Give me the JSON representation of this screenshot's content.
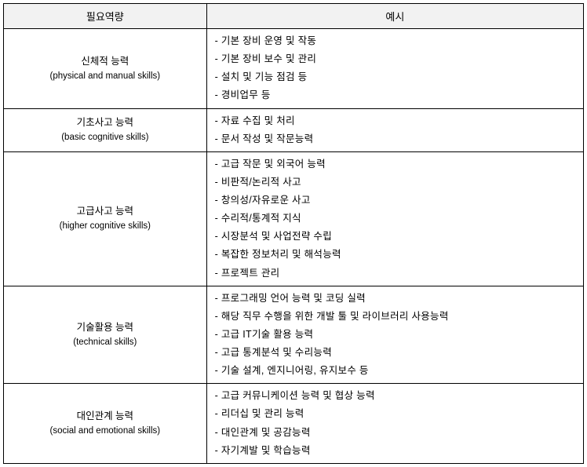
{
  "headers": {
    "category": "필요역량",
    "examples": "예시"
  },
  "rows": [
    {
      "kr": "신체적 능력",
      "en": "(physical and manual skills)",
      "items": [
        "- 기본 장비 운영 및 작동",
        "- 기본 장비 보수 및 관리",
        "- 설치 및 기능 점검 등",
        "- 경비업무 등"
      ]
    },
    {
      "kr": "기초사고 능력",
      "en": "(basic cognitive skills)",
      "items": [
        "- 자료 수집 및 처리",
        "- 문서 작성 및 작문능력"
      ]
    },
    {
      "kr": "고급사고 능력",
      "en": "(higher cognitive skills)",
      "items": [
        "- 고급 작문 및 외국어 능력",
        "- 비판적/논리적 사고",
        "- 창의성/자유로운 사고",
        "- 수리적/통계적 지식",
        "- 시장분석 및 사업전략 수립",
        "- 복잡한 정보처리 및 해석능력",
        "- 프로젝트 관리"
      ]
    },
    {
      "kr": "기술활용 능력",
      "en": "(technical skills)",
      "items": [
        "- 프로그래밍 언어 능력 및 코딩 실력",
        "- 해당 직무 수행을 위한 개발 툴 및 라이브러리 사용능력",
        "- 고급 IT기술 활용 능력",
        "- 고급 통계분석 및 수리능력",
        "- 기술 설계, 엔지니어링, 유지보수 등"
      ]
    },
    {
      "kr": "대인관계 능력",
      "en": "(social and emotional skills)",
      "items": [
        "- 고급 커뮤니케이션 능력 및 협상 능력",
        "- 리더십 및 관리 능력",
        "- 대인관계 및 공감능력",
        "- 자기계발 및 학습능력"
      ]
    }
  ],
  "styling": {
    "border_color": "#000000",
    "header_bg": "#f2f2f2",
    "body_bg": "#ffffff",
    "font_size_header": 13,
    "font_size_body": 12.5,
    "font_size_en": 11.5,
    "line_height_items": 1.85,
    "col_widths": [
      "35%",
      "65%"
    ]
  }
}
